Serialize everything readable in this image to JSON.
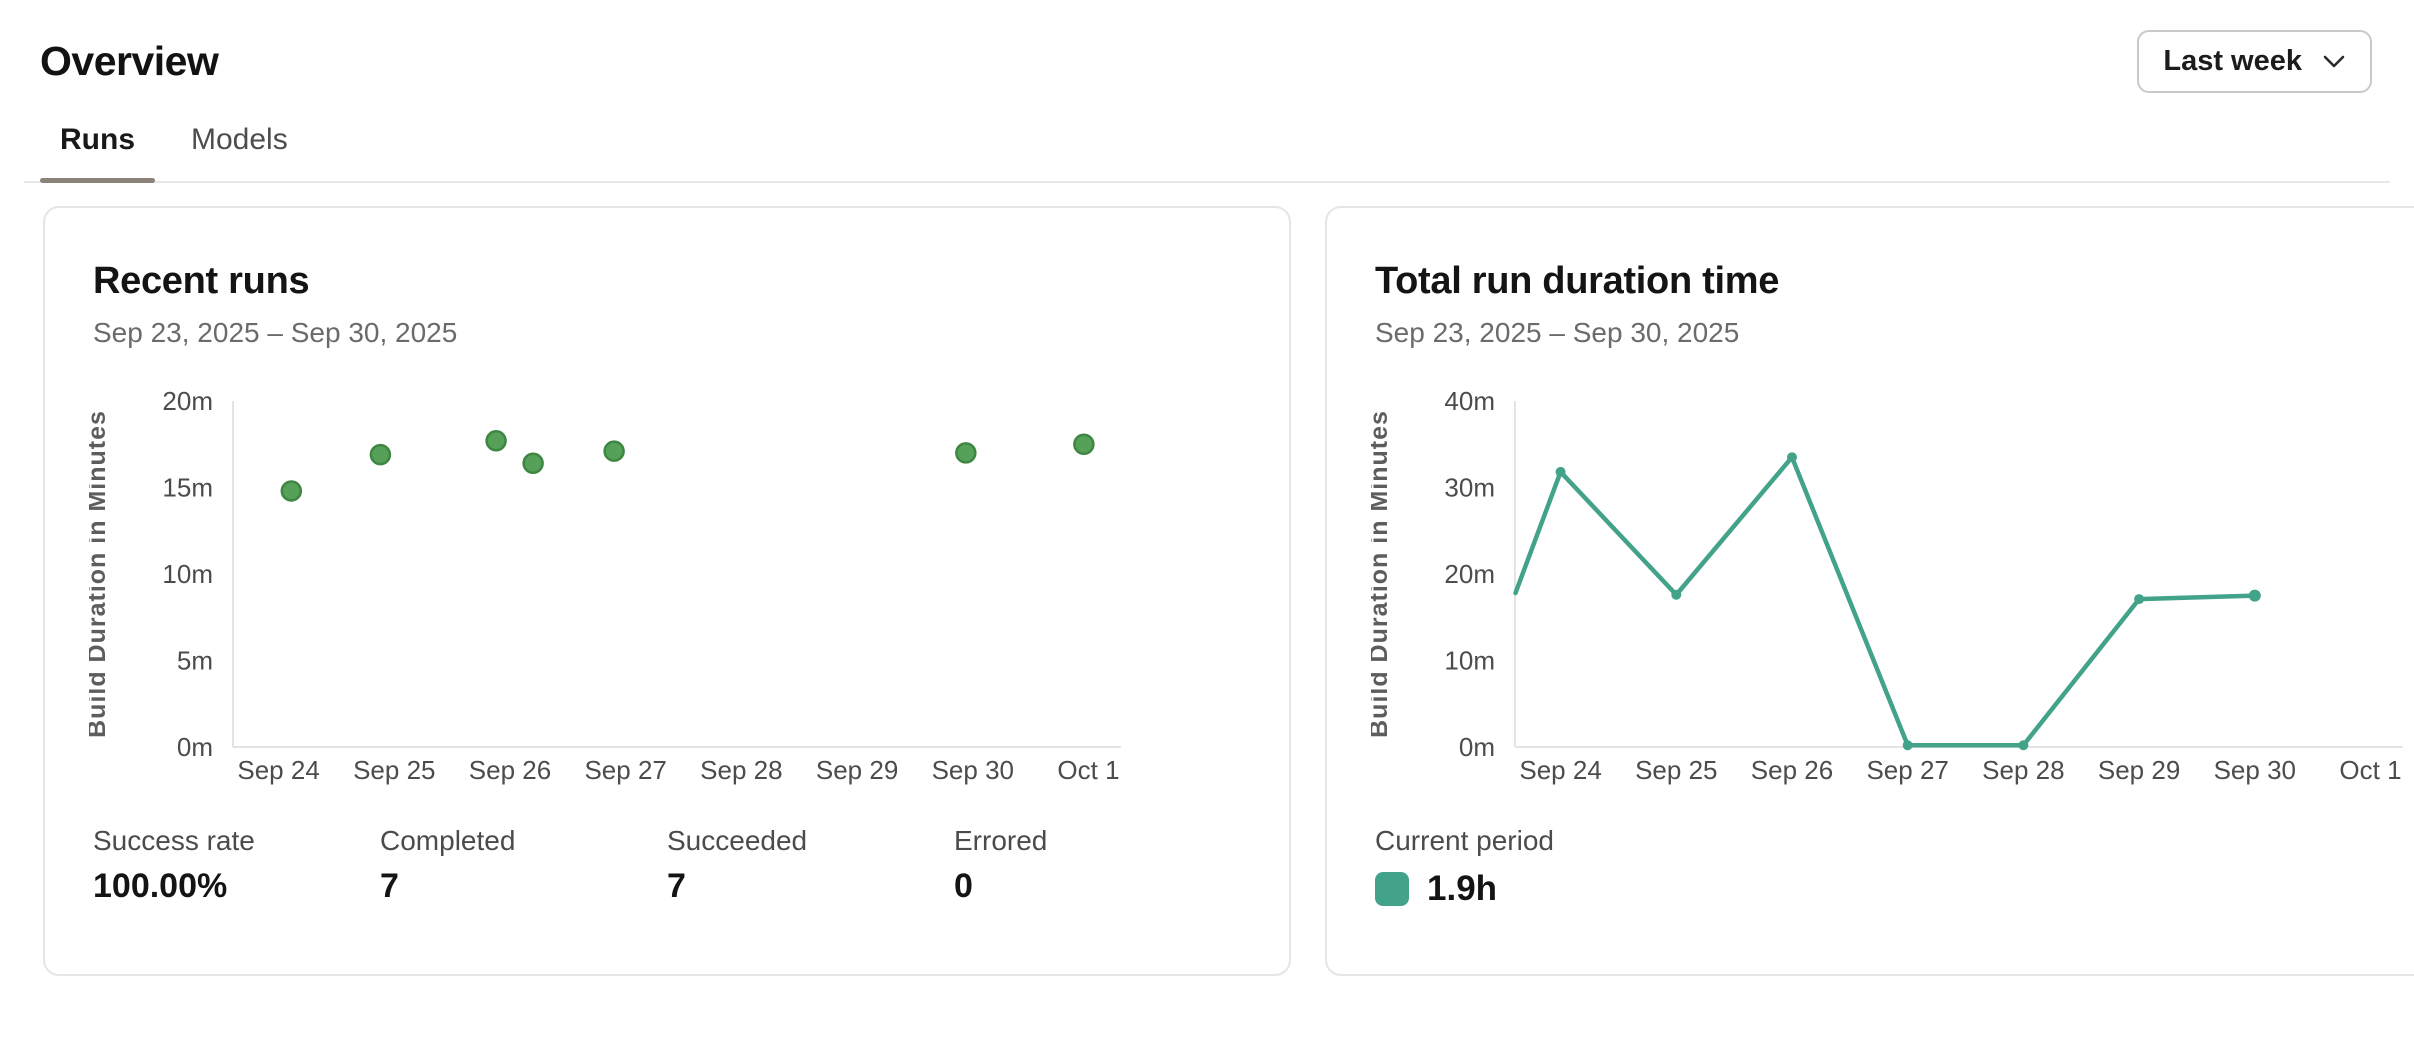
{
  "header": {
    "title": "Overview",
    "period": "Last week"
  },
  "icons": {
    "period_selector": "chevron-down"
  },
  "tabs": [
    {
      "label": "Runs",
      "active": true
    },
    {
      "label": "Models",
      "active": false
    }
  ],
  "colors": {
    "active_tab_underline": "#8b8279",
    "scatter_point": "#57a05a",
    "scatter_point_border": "#3e8742",
    "line_series": "#43a38a"
  },
  "cards": {
    "recent_runs": {
      "title": "Recent runs",
      "date_range": "Sep 23, 2025 – Sep 30, 2025",
      "stats": [
        {
          "label": "Success rate",
          "value": "100.00%"
        },
        {
          "label": "Completed",
          "value": "7"
        },
        {
          "label": "Succeeded",
          "value": "7"
        },
        {
          "label": "Errored",
          "value": "0"
        }
      ]
    },
    "duration": {
      "title": "Total run duration time",
      "date_range": "Sep 23, 2025 – Sep 30, 2025",
      "legend": {
        "label": "Current period",
        "value": "1.9h",
        "color": "#43a38a"
      }
    }
  },
  "chart_data": [
    {
      "type": "scatter",
      "title": "Recent runs",
      "ylabel": "Build Duration in Minutes",
      "ylim": [
        0,
        20
      ],
      "x_domain": [
        23.606,
        31.281
      ],
      "grid": false,
      "y_ticks": [
        {
          "y": 0,
          "label": "0m"
        },
        {
          "y": 5,
          "label": "5m"
        },
        {
          "y": 10,
          "label": "10m"
        },
        {
          "y": 15,
          "label": "15m"
        },
        {
          "y": 20,
          "label": "20m"
        }
      ],
      "x_ticks": [
        {
          "x": 24,
          "label": "Sep 24"
        },
        {
          "x": 25,
          "label": "Sep 25"
        },
        {
          "x": 26,
          "label": "Sep 26"
        },
        {
          "x": 27,
          "label": "Sep 27"
        },
        {
          "x": 28,
          "label": "Sep 28"
        },
        {
          "x": 29,
          "label": "Sep 29"
        },
        {
          "x": 30,
          "label": "Sep 30"
        },
        {
          "x": 31,
          "label": "Oct 1"
        }
      ],
      "points": [
        {
          "x": 24.11,
          "y": 14.8
        },
        {
          "x": 24.88,
          "y": 16.9
        },
        {
          "x": 25.88,
          "y": 17.7
        },
        {
          "x": 26.2,
          "y": 16.4
        },
        {
          "x": 26.9,
          "y": 17.1
        },
        {
          "x": 29.94,
          "y": 17.0
        },
        {
          "x": 30.96,
          "y": 17.5
        }
      ],
      "point_color": "#57a05a",
      "point_border": "#3e8742"
    },
    {
      "type": "line",
      "title": "Total run duration time",
      "series_name": "Current period",
      "total": "1.9h",
      "ylabel": "Build Duration in Minutes",
      "ylim": [
        0,
        40
      ],
      "x_domain": [
        23.606,
        31.281
      ],
      "grid": false,
      "y_ticks": [
        {
          "y": 0,
          "label": "0m"
        },
        {
          "y": 10,
          "label": "10m"
        },
        {
          "y": 20,
          "label": "20m"
        },
        {
          "y": 30,
          "label": "30m"
        },
        {
          "y": 40,
          "label": "40m"
        }
      ],
      "x_ticks": [
        {
          "x": 24,
          "label": "Sep 24"
        },
        {
          "x": 25,
          "label": "Sep 25"
        },
        {
          "x": 26,
          "label": "Sep 26"
        },
        {
          "x": 27,
          "label": "Sep 27"
        },
        {
          "x": 28,
          "label": "Sep 28"
        },
        {
          "x": 29,
          "label": "Sep 29"
        },
        {
          "x": 30,
          "label": "Sep 30"
        },
        {
          "x": 31,
          "label": "Oct 1"
        }
      ],
      "points": [
        {
          "x": 23.61,
          "y": 17.8,
          "edge": true
        },
        {
          "x": 24,
          "y": 31.8
        },
        {
          "x": 25,
          "y": 17.6
        },
        {
          "x": 26,
          "y": 33.5
        },
        {
          "x": 27,
          "y": 0.2
        },
        {
          "x": 28,
          "y": 0.2
        },
        {
          "x": 29,
          "y": 17.1
        },
        {
          "x": 30,
          "y": 17.5
        }
      ],
      "line_color": "#43a38a"
    }
  ]
}
